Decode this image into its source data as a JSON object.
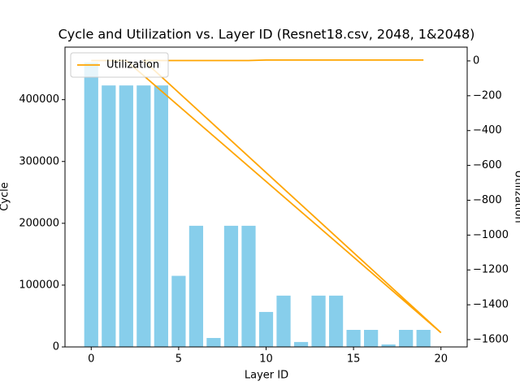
{
  "chart_data": {
    "type": "bar",
    "title": "Cycle and Utilization vs. Layer ID (Resnet18.csv, 2048, 1&2048)",
    "x_label": "Layer ID",
    "y_label": "Cycle",
    "y2_label": "Utilization",
    "xlim": [
      -1.5,
      21.5
    ],
    "xticks": [
      0,
      5,
      10,
      15,
      20
    ],
    "ylim": [
      0,
      485000
    ],
    "yticks": [
      0,
      100000,
      200000,
      300000,
      400000
    ],
    "y2lim": [
      -1642,
      79
    ],
    "y2ticks": [
      0,
      {
        "value": -200,
        "label": "−200"
      },
      {
        "value": -400,
        "label": "−400"
      },
      {
        "value": -600,
        "label": "−600"
      },
      {
        "value": -800,
        "label": "−800"
      },
      {
        "value": -1000,
        "label": "−1000"
      },
      {
        "value": -1200,
        "label": "−1200"
      },
      {
        "value": -1400,
        "label": "−1400"
      },
      {
        "value": -1600,
        "label": "−1600"
      }
    ],
    "legend": "upper left",
    "series": [
      {
        "type": "bar",
        "color": "#87ceeb",
        "x": [
          0,
          1,
          2,
          3,
          4,
          5,
          6,
          7,
          8,
          9,
          10,
          11,
          12,
          13,
          14,
          15,
          16,
          17,
          18,
          19
        ],
        "values": [
          460000,
          423000,
          423000,
          423000,
          423000,
          115000,
          196000,
          14500,
          196000,
          196000,
          56600,
          83000,
          8000,
          83000,
          83000,
          27600,
          27600,
          4000,
          27600,
          27600
        ]
      },
      {
        "type": "line",
        "name": "Utilization",
        "color": "#ffa500",
        "axis": "y2",
        "x": [
          0,
          1,
          2,
          20,
          3,
          4,
          5,
          6,
          7,
          8,
          9,
          10,
          11,
          12,
          13,
          14,
          15,
          16,
          17,
          18,
          19
        ],
        "values": [
          2,
          2,
          2,
          -1560,
          2,
          2,
          2,
          2,
          2,
          2,
          2,
          5,
          5,
          5,
          5,
          5,
          5,
          5,
          5,
          5,
          5
        ]
      }
    ]
  }
}
